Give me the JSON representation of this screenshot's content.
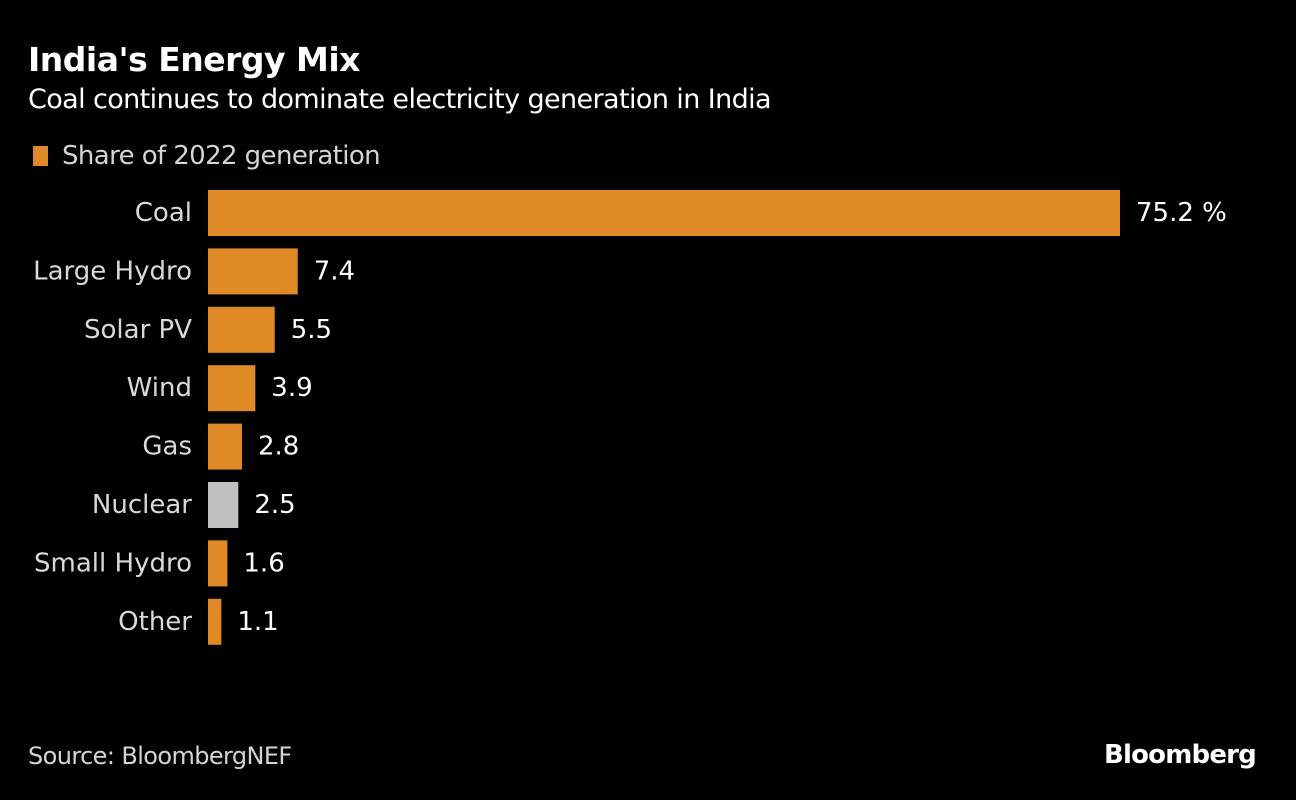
{
  "header": {
    "title": "India's Energy Mix",
    "subtitle": "Coal continues to dominate electricity generation in India"
  },
  "legend": {
    "label": "Share of 2022 generation",
    "color": "#DF8A26"
  },
  "footer": {
    "source": "Source: BloombergNEF",
    "brand": "Bloomberg"
  },
  "chart_data": {
    "type": "bar",
    "orientation": "horizontal",
    "title": "India's Energy Mix",
    "subtitle": "Coal continues to dominate electricity generation in India",
    "xlabel": "",
    "ylabel": "",
    "unit": "%",
    "xlim": [
      0,
      75.2
    ],
    "grid": false,
    "legend_position": "top-left",
    "categories": [
      "Coal",
      "Large Hydro",
      "Solar PV",
      "Wind",
      "Gas",
      "Nuclear",
      "Small Hydro",
      "Other"
    ],
    "series": [
      {
        "name": "Share of 2022 generation",
        "values": [
          75.2,
          7.4,
          5.5,
          3.9,
          2.8,
          2.5,
          1.6,
          1.1
        ],
        "value_labels": [
          "75.2 %",
          "7.4",
          "5.5",
          "3.9",
          "2.8",
          "2.5",
          "1.6",
          "1.1"
        ],
        "colors": [
          "#DF8A26",
          "#DF8A26",
          "#DF8A26",
          "#DF8A26",
          "#DF8A26",
          "#C0C0C0",
          "#DF8A26",
          "#DF8A26"
        ]
      }
    ],
    "source": "Source: BloombergNEF"
  }
}
